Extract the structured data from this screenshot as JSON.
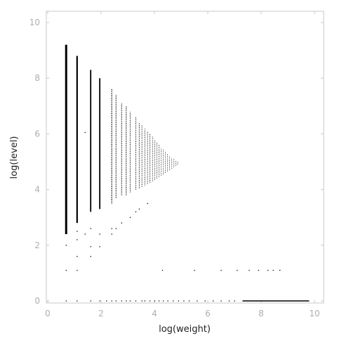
{
  "chart_data": {
    "type": "scatter",
    "title": "",
    "xlabel": "log(weight)",
    "ylabel": "log(level)",
    "xlim": [
      0,
      10.4
    ],
    "ylim": [
      0,
      10.4
    ],
    "xticks": [
      0,
      2,
      4,
      6,
      8,
      10
    ],
    "yticks": [
      0,
      2,
      4,
      6,
      8,
      10
    ],
    "grid": false,
    "legend": "none",
    "colors": {
      "points": "#000000",
      "frame": "#c8c8c8",
      "tick_text": "#a9b0b3",
      "axis_text": "#222222"
    },
    "columns": [
      {
        "x": 0.69,
        "ymin": 2.4,
        "ymax": 9.2,
        "weight": 3.0
      },
      {
        "x": 1.1,
        "ymin": 2.8,
        "ymax": 8.8,
        "weight": 2.2
      },
      {
        "x": 1.61,
        "ymin": 3.2,
        "ymax": 8.3,
        "weight": 1.8
      },
      {
        "x": 1.95,
        "ymin": 3.3,
        "ymax": 8.0,
        "weight": 1.8
      },
      {
        "x": 2.4,
        "ymin": 3.5,
        "ymax": 7.6,
        "weight": 1.4
      },
      {
        "x": 2.56,
        "ymin": 3.7,
        "ymax": 7.4,
        "weight": 1.2
      },
      {
        "x": 2.77,
        "ymin": 3.8,
        "ymax": 7.1,
        "weight": 1.2
      },
      {
        "x": 2.94,
        "ymin": 3.8,
        "ymax": 7.0,
        "weight": 1.2
      },
      {
        "x": 3.09,
        "ymin": 3.9,
        "ymax": 6.8,
        "weight": 1.0
      },
      {
        "x": 3.3,
        "ymin": 4.0,
        "ymax": 6.6,
        "weight": 1.0
      },
      {
        "x": 3.43,
        "ymin": 4.05,
        "ymax": 6.4,
        "weight": 1.0
      },
      {
        "x": 3.53,
        "ymin": 4.1,
        "ymax": 6.3,
        "weight": 0.9
      },
      {
        "x": 3.64,
        "ymin": 4.15,
        "ymax": 6.2,
        "weight": 0.9
      },
      {
        "x": 3.74,
        "ymin": 4.2,
        "ymax": 6.1,
        "weight": 0.9
      },
      {
        "x": 3.83,
        "ymin": 4.25,
        "ymax": 6.0,
        "weight": 0.9
      },
      {
        "x": 3.93,
        "ymin": 4.3,
        "ymax": 5.9,
        "weight": 0.8
      },
      {
        "x": 4.01,
        "ymin": 4.35,
        "ymax": 5.8,
        "weight": 0.8
      },
      {
        "x": 4.09,
        "ymin": 4.4,
        "ymax": 5.7,
        "weight": 0.8
      },
      {
        "x": 4.17,
        "ymin": 4.45,
        "ymax": 5.6,
        "weight": 0.8
      },
      {
        "x": 4.25,
        "ymin": 4.5,
        "ymax": 5.5,
        "weight": 0.7
      },
      {
        "x": 4.33,
        "ymin": 4.55,
        "ymax": 5.45,
        "weight": 0.7
      },
      {
        "x": 4.41,
        "ymin": 4.6,
        "ymax": 5.35,
        "weight": 0.7
      },
      {
        "x": 4.49,
        "ymin": 4.65,
        "ymax": 5.3,
        "weight": 0.7
      },
      {
        "x": 4.57,
        "ymin": 4.7,
        "ymax": 5.2,
        "weight": 0.7
      },
      {
        "x": 4.65,
        "ymin": 4.75,
        "ymax": 5.15,
        "weight": 0.7
      },
      {
        "x": 4.73,
        "ymin": 4.8,
        "ymax": 5.1,
        "weight": 0.7
      },
      {
        "x": 4.8,
        "ymin": 4.85,
        "ymax": 5.05,
        "weight": 0.7
      },
      {
        "x": 4.87,
        "ymin": 4.9,
        "ymax": 5.0,
        "weight": 0.7
      }
    ],
    "points": [
      {
        "x": 0.69,
        "y": 0.0
      },
      {
        "x": 0.69,
        "y": 1.1
      },
      {
        "x": 0.69,
        "y": 2.0
      },
      {
        "x": 0.69,
        "y": 2.7
      },
      {
        "x": 0.69,
        "y": 2.8
      },
      {
        "x": 1.1,
        "y": 0.0
      },
      {
        "x": 1.1,
        "y": 1.1
      },
      {
        "x": 1.1,
        "y": 1.6
      },
      {
        "x": 1.1,
        "y": 2.2
      },
      {
        "x": 1.1,
        "y": 2.5
      },
      {
        "x": 1.4,
        "y": 6.05
      },
      {
        "x": 1.4,
        "y": 2.4
      },
      {
        "x": 1.61,
        "y": 0.0
      },
      {
        "x": 1.61,
        "y": 1.6
      },
      {
        "x": 1.61,
        "y": 1.95
      },
      {
        "x": 1.61,
        "y": 2.6
      },
      {
        "x": 1.95,
        "y": 1.95
      },
      {
        "x": 1.95,
        "y": 2.4
      },
      {
        "x": 2.4,
        "y": 0.0
      },
      {
        "x": 2.4,
        "y": 2.4
      },
      {
        "x": 2.4,
        "y": 2.6
      },
      {
        "x": 2.56,
        "y": 2.6
      },
      {
        "x": 2.77,
        "y": 0.0
      },
      {
        "x": 2.77,
        "y": 2.8
      },
      {
        "x": 2.94,
        "y": 0.0
      },
      {
        "x": 3.09,
        "y": 3.0
      },
      {
        "x": 3.3,
        "y": 0.0
      },
      {
        "x": 3.3,
        "y": 3.2
      },
      {
        "x": 3.43,
        "y": 3.3
      },
      {
        "x": 3.64,
        "y": 0.0
      },
      {
        "x": 3.74,
        "y": 3.5
      },
      {
        "x": 4.01,
        "y": 0.0
      },
      {
        "x": 4.3,
        "y": 1.1
      },
      {
        "x": 5.5,
        "y": 1.1
      },
      {
        "x": 6.5,
        "y": 1.1
      },
      {
        "x": 7.1,
        "y": 1.1
      },
      {
        "x": 7.55,
        "y": 1.1
      },
      {
        "x": 7.9,
        "y": 1.1
      },
      {
        "x": 8.25,
        "y": 1.1
      },
      {
        "x": 8.45,
        "y": 1.1
      },
      {
        "x": 8.7,
        "y": 1.1
      },
      {
        "x": 1.95,
        "y": 0.0
      },
      {
        "x": 2.2,
        "y": 0.0
      },
      {
        "x": 2.56,
        "y": 0.0
      },
      {
        "x": 3.09,
        "y": 0.0
      },
      {
        "x": 3.53,
        "y": 0.0
      },
      {
        "x": 3.83,
        "y": 0.0
      },
      {
        "x": 4.17,
        "y": 0.0
      },
      {
        "x": 4.33,
        "y": 0.0
      },
      {
        "x": 4.5,
        "y": 0.0
      },
      {
        "x": 4.7,
        "y": 0.0
      },
      {
        "x": 4.9,
        "y": 0.0
      },
      {
        "x": 5.1,
        "y": 0.0
      },
      {
        "x": 5.3,
        "y": 0.0
      },
      {
        "x": 5.6,
        "y": 0.0
      },
      {
        "x": 5.9,
        "y": 0.0
      },
      {
        "x": 6.2,
        "y": 0.0
      },
      {
        "x": 6.5,
        "y": 0.0
      },
      {
        "x": 6.8,
        "y": 0.0
      },
      {
        "x": 7.0,
        "y": 0.0
      }
    ],
    "baseline_segment": {
      "x_start": 7.3,
      "x_end": 9.8,
      "y": 0.0
    }
  }
}
